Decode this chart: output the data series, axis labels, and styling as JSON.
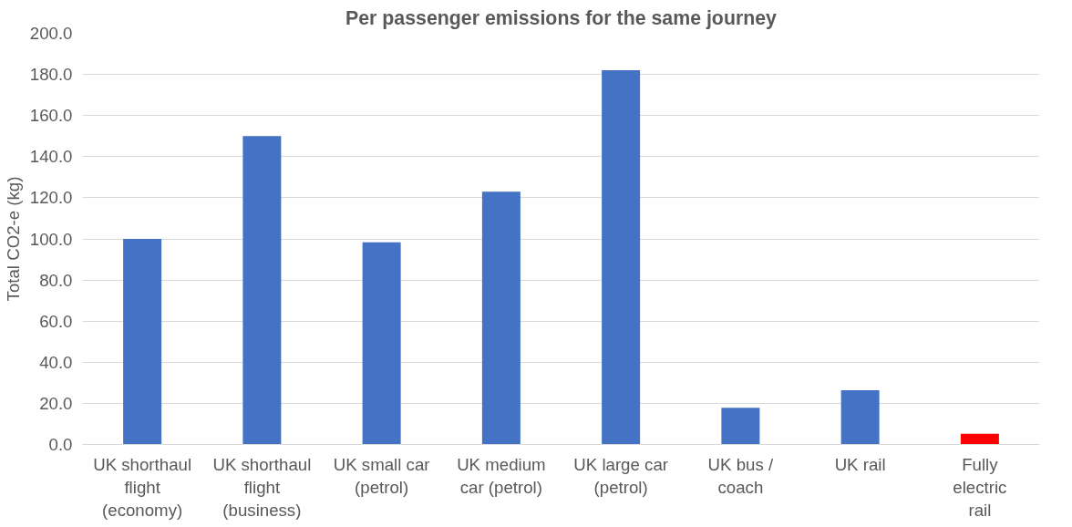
{
  "chart_data": {
    "type": "bar",
    "title": "Per passenger emissions for the same journey",
    "ylabel": "Total CO2-e (kg)",
    "categories": [
      "UK shorthaul flight (economy)",
      "UK shorthaul flight (business)",
      "UK small car (petrol)",
      "UK medium car (petrol)",
      "UK large car (petrol)",
      "UK bus / coach",
      "UK rail",
      "Fully electric rail"
    ],
    "values": [
      100,
      150,
      98.3,
      123,
      182,
      17.8,
      26.4,
      5.2
    ],
    "colors": [
      "#4472c4",
      "#4472c4",
      "#4472c4",
      "#4472c4",
      "#4472c4",
      "#4472c4",
      "#4472c4",
      "#ff0000"
    ],
    "ylim": [
      0,
      200
    ],
    "yticks": [
      {
        "value": 0,
        "label": "0.0"
      },
      {
        "value": 20,
        "label": "20.0"
      },
      {
        "value": 40,
        "label": "40.0"
      },
      {
        "value": 60,
        "label": "60.0"
      },
      {
        "value": 80,
        "label": "80.0"
      },
      {
        "value": 100,
        "label": "100.0"
      },
      {
        "value": 120,
        "label": "120.0"
      },
      {
        "value": 140,
        "label": "140.0"
      },
      {
        "value": 160,
        "label": "160.0"
      },
      {
        "value": 180,
        "label": "180.0"
      },
      {
        "value": 200,
        "label": "200.0"
      }
    ],
    "grid": "y"
  }
}
